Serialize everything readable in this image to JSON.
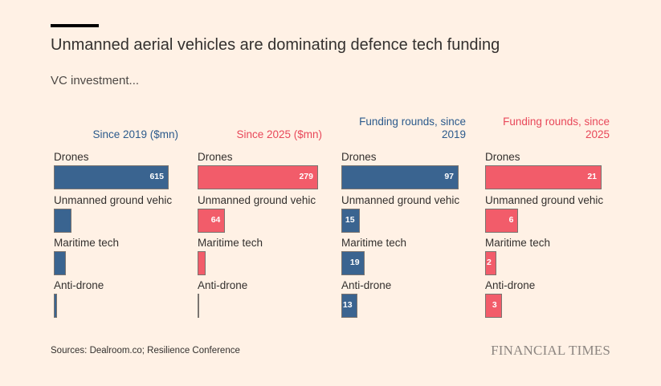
{
  "header": {
    "title": "Unmanned aerial vehicles are dominating defence tech funding",
    "subtitle": "VC investment..."
  },
  "footer": {
    "source": "Sources: Dealroom.co; Resilience Conference",
    "brand": "FINANCIAL TIMES"
  },
  "colors": {
    "blue": "#3a6490",
    "red": "#f25c6a",
    "background": "#fff1e5"
  },
  "chart_data": [
    {
      "type": "bar",
      "orientation": "horizontal",
      "title": "Since 2019 ($mn)",
      "color": "#3a6490",
      "title_color": "#2b5a8c",
      "categories": [
        "Drones",
        "Unmanned ground vehicles",
        "Maritime tech",
        "Anti-drone"
      ],
      "display_labels": [
        "Drones",
        "Unmanned ground vehic",
        "Maritime tech",
        "Anti-drone"
      ],
      "values": [
        615,
        94,
        64,
        17
      ],
      "data_labels": [
        "615",
        "",
        "",
        ""
      ],
      "xlim": [
        0,
        615
      ]
    },
    {
      "type": "bar",
      "orientation": "horizontal",
      "title": "Since 2025 ($mn)",
      "color": "#f25c6a",
      "title_color": "#e8485a",
      "categories": [
        "Drones",
        "Unmanned ground vehicles",
        "Maritime tech",
        "Anti-drone"
      ],
      "display_labels": [
        "Drones",
        "Unmanned ground vehic",
        "Maritime tech",
        "Anti-drone"
      ],
      "values": [
        279,
        64,
        19,
        2
      ],
      "data_labels": [
        "279",
        "64",
        "",
        ""
      ],
      "xlim": [
        0,
        279
      ]
    },
    {
      "type": "bar",
      "orientation": "horizontal",
      "title": "Funding rounds, since 2019",
      "color": "#3a6490",
      "title_color": "#2b5a8c",
      "categories": [
        "Drones",
        "Unmanned ground vehicles",
        "Maritime tech",
        "Anti-drone"
      ],
      "display_labels": [
        "Drones",
        "Unmanned ground vehic",
        "Maritime tech",
        "Anti-drone"
      ],
      "values": [
        97,
        15,
        19,
        13
      ],
      "data_labels": [
        "97",
        "15",
        "19",
        "13"
      ],
      "xlim": [
        0,
        97
      ]
    },
    {
      "type": "bar",
      "orientation": "horizontal",
      "title": "Funding rounds, since 2025",
      "color": "#f25c6a",
      "title_color": "#e8485a",
      "categories": [
        "Drones",
        "Unmanned ground vehicles",
        "Maritime tech",
        "Anti-drone"
      ],
      "display_labels": [
        "Drones",
        "Unmanned ground vehic",
        "Maritime tech",
        "Anti-drone"
      ],
      "values": [
        21,
        6,
        2,
        3
      ],
      "data_labels": [
        "21",
        "6",
        "2",
        "3"
      ],
      "xlim": [
        0,
        21
      ]
    }
  ]
}
